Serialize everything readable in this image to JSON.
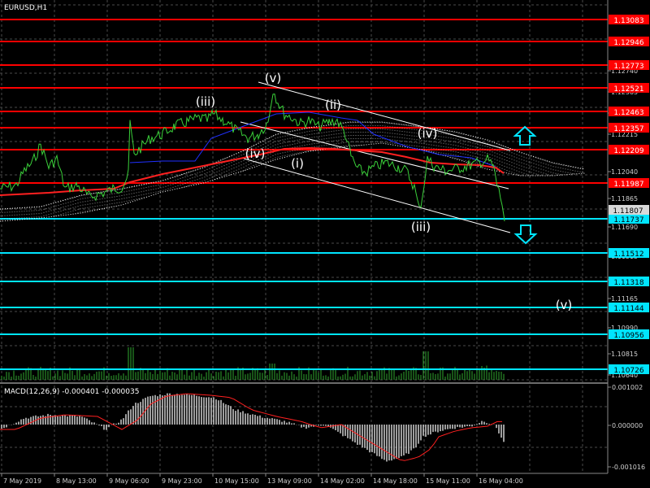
{
  "window": {
    "symbol_label": "EURUSD,H1"
  },
  "macd": {
    "label": "MACD(12,26,9) -0.000401 -0.000035",
    "ticks": [
      "0.001002",
      "0.000000",
      "-0.001016"
    ]
  },
  "price_axis": {
    "ticks": [
      "1.12740",
      "1.12565",
      "1.12390",
      "1.12215",
      "1.12040",
      "1.11865",
      "1.11690",
      "1.11515",
      "1.11340",
      "1.11165",
      "1.10990",
      "1.10815",
      "1.10640"
    ]
  },
  "time_axis": {
    "labels": [
      "7 May 2019",
      "8 May 13:00",
      "9 May 06:00",
      "9 May 23:00",
      "10 May 15:00",
      "13 May 09:00",
      "14 May 02:00",
      "14 May 18:00",
      "15 May 11:00",
      "16 May 04:00"
    ]
  },
  "levels": {
    "red": [
      "1.13083",
      "1.12946",
      "1.12773",
      "1.12521",
      "1.12463",
      "1.12357",
      "1.12209",
      "1.11987"
    ],
    "cyan": [
      "1.11737",
      "1.11512",
      "1.11318",
      "1.11144",
      "1.10956",
      "1.10726"
    ]
  },
  "current_price": "1.11807",
  "wave_labels": [
    "(iii)",
    "(v)",
    "(ii)",
    "(iv)",
    "(i)",
    "(iv)",
    "(iii)",
    "(v)"
  ],
  "colors": {
    "background": "#000000",
    "grid": "#4a4a4a",
    "resistance": "#ff0000",
    "support": "#00e5ff",
    "price_line": "#3ad13a",
    "ma_fast": "#ff2020",
    "ma_slow": "#2030ff",
    "channel": "#ffffff",
    "histogram": "#d0d0d0",
    "signal": "#ff2020",
    "volume": "#2fa82f"
  }
}
